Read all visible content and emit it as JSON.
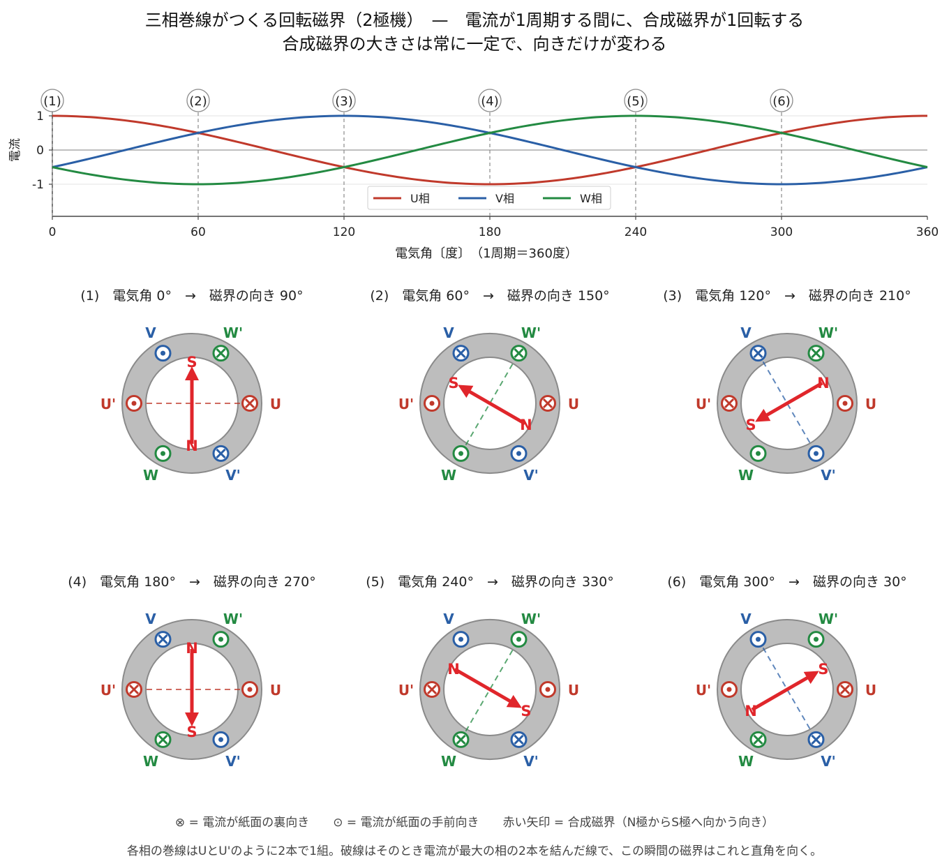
{
  "title": {
    "line1": "三相巻線がつくる回転磁界（2極機）　—　電流が1周期する間に、合成磁界が1回転する",
    "line2": "合成磁界の大きさは常に一定で、向きだけが変わる"
  },
  "chart_data": {
    "type": "line",
    "title": "",
    "xlabel": "電気角〔度〕　（1周期＝360度）",
    "ylabel": "電流",
    "xlim": [
      0,
      360
    ],
    "ylim": [
      -1.9,
      1.15
    ],
    "xticks": [
      "0",
      "60",
      "120",
      "180",
      "240",
      "300",
      "360"
    ],
    "yticks": [
      "1",
      "0",
      "-1"
    ],
    "grid": "horizontal",
    "legend_position": "bottom-center",
    "x": [
      0,
      30,
      60,
      90,
      120,
      150,
      180,
      210,
      240,
      270,
      300,
      330,
      360
    ],
    "series": [
      {
        "name": "U相",
        "color": "#c0392b",
        "values": [
          1.0,
          0.866,
          0.5,
          0.0,
          -0.5,
          -0.866,
          -1.0,
          -0.866,
          -0.5,
          0.0,
          0.5,
          0.866,
          1.0
        ]
      },
      {
        "name": "V相",
        "color": "#2a5fa6",
        "values": [
          -0.5,
          0.0,
          0.5,
          0.866,
          1.0,
          0.866,
          0.5,
          0.0,
          -0.5,
          -0.866,
          -1.0,
          -0.866,
          -0.5
        ]
      },
      {
        "name": "W相",
        "color": "#238a42",
        "values": [
          -0.5,
          -0.866,
          -1.0,
          -0.866,
          -0.5,
          0.0,
          0.5,
          0.866,
          1.0,
          0.866,
          0.5,
          0.0,
          -0.5
        ]
      }
    ],
    "markers": [
      {
        "label": "(1)",
        "x": 0
      },
      {
        "label": "(2)",
        "x": 60
      },
      {
        "label": "(3)",
        "x": 120
      },
      {
        "label": "(4)",
        "x": 180
      },
      {
        "label": "(5)",
        "x": 240
      },
      {
        "label": "(6)",
        "x": 300
      }
    ]
  },
  "colors": {
    "U": "#c0392b",
    "V": "#2a5fa6",
    "W": "#238a42",
    "arrow": "#e0262b",
    "ring": "#bdbdbd",
    "ring_edge": "#8a8a8a"
  },
  "phase_labels": {
    "U": "U",
    "Up": "U'",
    "V": "V",
    "Vp": "V'",
    "W": "W",
    "Wp": "W'"
  },
  "pole_labels": {
    "N": "N",
    "S": "S"
  },
  "slot_symbols": {
    "into": "⊗",
    "out": "⊙"
  },
  "panels": [
    {
      "caption": "(1)　電気角 0°　→　磁界の向き 90°",
      "electrical_angle": 0,
      "field_angle": 90,
      "slots": {
        "U": "into",
        "Up": "out",
        "V": "out",
        "Vp": "into",
        "W": "out",
        "Wp": "into"
      },
      "dashed": "U"
    },
    {
      "caption": "(2)　電気角 60°　→　磁界の向き 150°",
      "electrical_angle": 60,
      "field_angle": 150,
      "slots": {
        "U": "into",
        "Up": "out",
        "V": "into",
        "Vp": "out",
        "W": "out",
        "Wp": "into"
      },
      "dashed": "W"
    },
    {
      "caption": "(3)　電気角 120°　→　磁界の向き 210°",
      "electrical_angle": 120,
      "field_angle": 210,
      "slots": {
        "U": "out",
        "Up": "into",
        "V": "into",
        "Vp": "out",
        "W": "out",
        "Wp": "into"
      },
      "dashed": "V"
    },
    {
      "caption": "(4)　電気角 180°　→　磁界の向き 270°",
      "electrical_angle": 180,
      "field_angle": 270,
      "slots": {
        "U": "out",
        "Up": "into",
        "V": "into",
        "Vp": "out",
        "W": "into",
        "Wp": "out"
      },
      "dashed": "U"
    },
    {
      "caption": "(5)　電気角 240°　→　磁界の向き 330°",
      "electrical_angle": 240,
      "field_angle": 330,
      "slots": {
        "U": "out",
        "Up": "into",
        "V": "out",
        "Vp": "into",
        "W": "into",
        "Wp": "out"
      },
      "dashed": "W"
    },
    {
      "caption": "(6)　電気角 300°　→　磁界の向き 30°",
      "electrical_angle": 300,
      "field_angle": 30,
      "slots": {
        "U": "into",
        "Up": "out",
        "V": "out",
        "Vp": "into",
        "W": "into",
        "Wp": "out"
      },
      "dashed": "V"
    }
  ],
  "footer": {
    "legend": "⊗ = 電流が紙面の裏向き　　⊙ = 電流が紙面の手前向き　　赤い矢印 = 合成磁界（N極からS極へ向かう向き）",
    "note": "各相の巻線はUとU'のように2本で1組。破線はそのとき電流が最大の相の2本を結んだ線で、この瞬間の磁界はこれと直角を向く。"
  }
}
